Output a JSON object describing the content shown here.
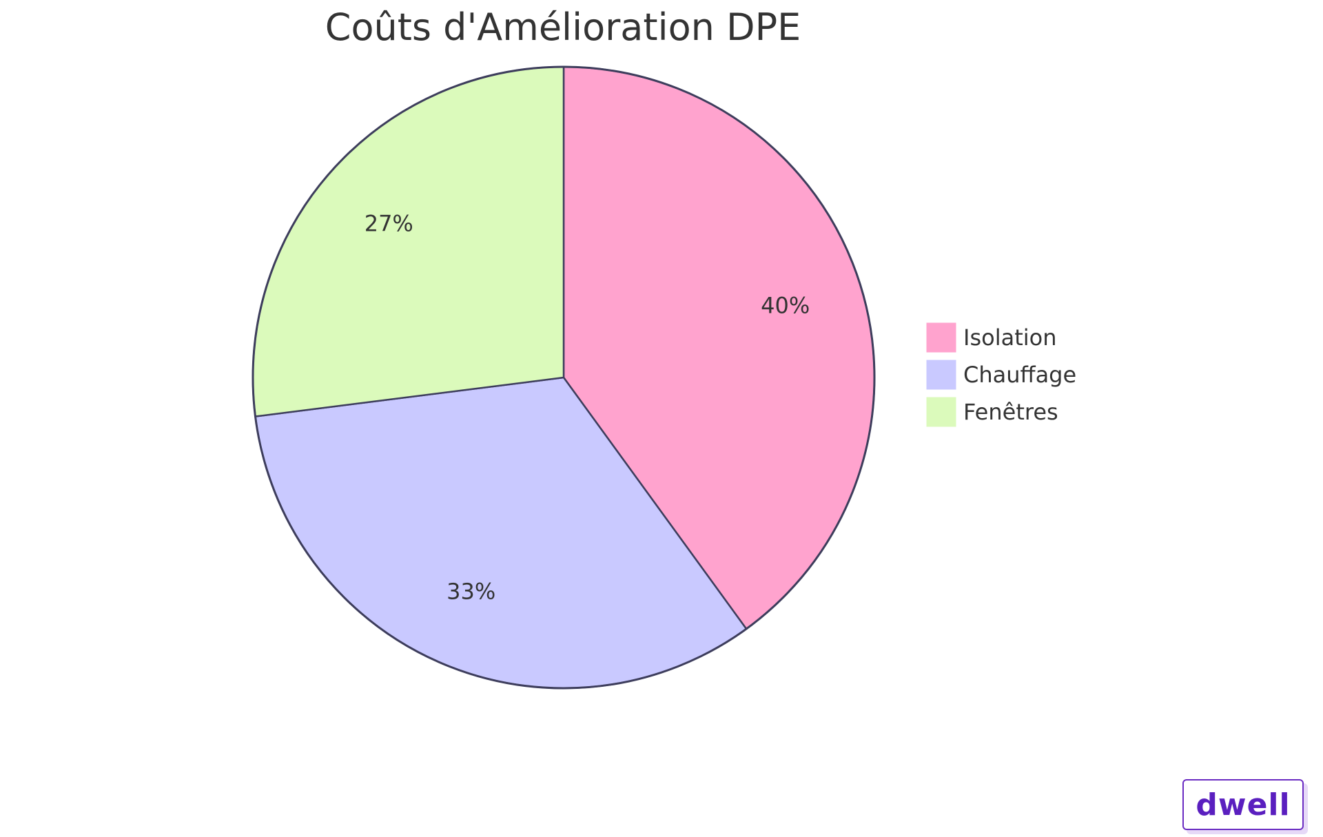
{
  "chart_data": {
    "type": "pie",
    "title": "Coûts d'Amélioration DPE",
    "slices": [
      {
        "name": "Isolation",
        "value": 40,
        "label": "40%",
        "color": "#FFA3CE"
      },
      {
        "name": "Chauffage",
        "value": 33,
        "label": "33%",
        "color": "#C9C9FF"
      },
      {
        "name": "Fenêtres",
        "value": 27,
        "label": "27%",
        "color": "#DBFABB"
      }
    ],
    "legend_position": "right",
    "stroke_color": "#3D3D5C"
  },
  "brand": {
    "logo_text": "dwell",
    "color": "#5A1FBF"
  }
}
